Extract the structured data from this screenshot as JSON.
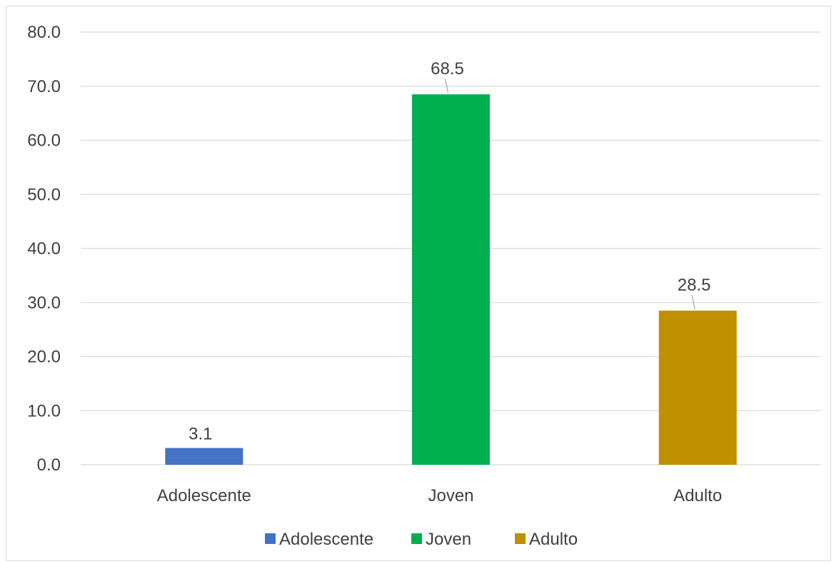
{
  "chart_data": {
    "type": "bar",
    "categories": [
      "Adolescente",
      "Joven",
      "Adulto"
    ],
    "values": [
      3.1,
      68.5,
      28.5
    ],
    "data_labels": [
      "3.1",
      "68.5",
      "28.5"
    ],
    "colors": [
      "#4472c4",
      "#00b050",
      "#bf9000"
    ],
    "title": "",
    "xlabel": "",
    "ylabel": "",
    "ylim": [
      0,
      80
    ],
    "y_ticks": [
      0,
      10,
      20,
      30,
      40,
      50,
      60,
      70,
      80
    ],
    "y_tick_labels": [
      "0.0",
      "10.0",
      "20.0",
      "30.0",
      "40.0",
      "50.0",
      "60.0",
      "70.0",
      "80.0"
    ],
    "grid": true,
    "legend": {
      "placement": "bottom",
      "entries": [
        "Adolescente",
        "Joven",
        "Adulto"
      ]
    }
  }
}
